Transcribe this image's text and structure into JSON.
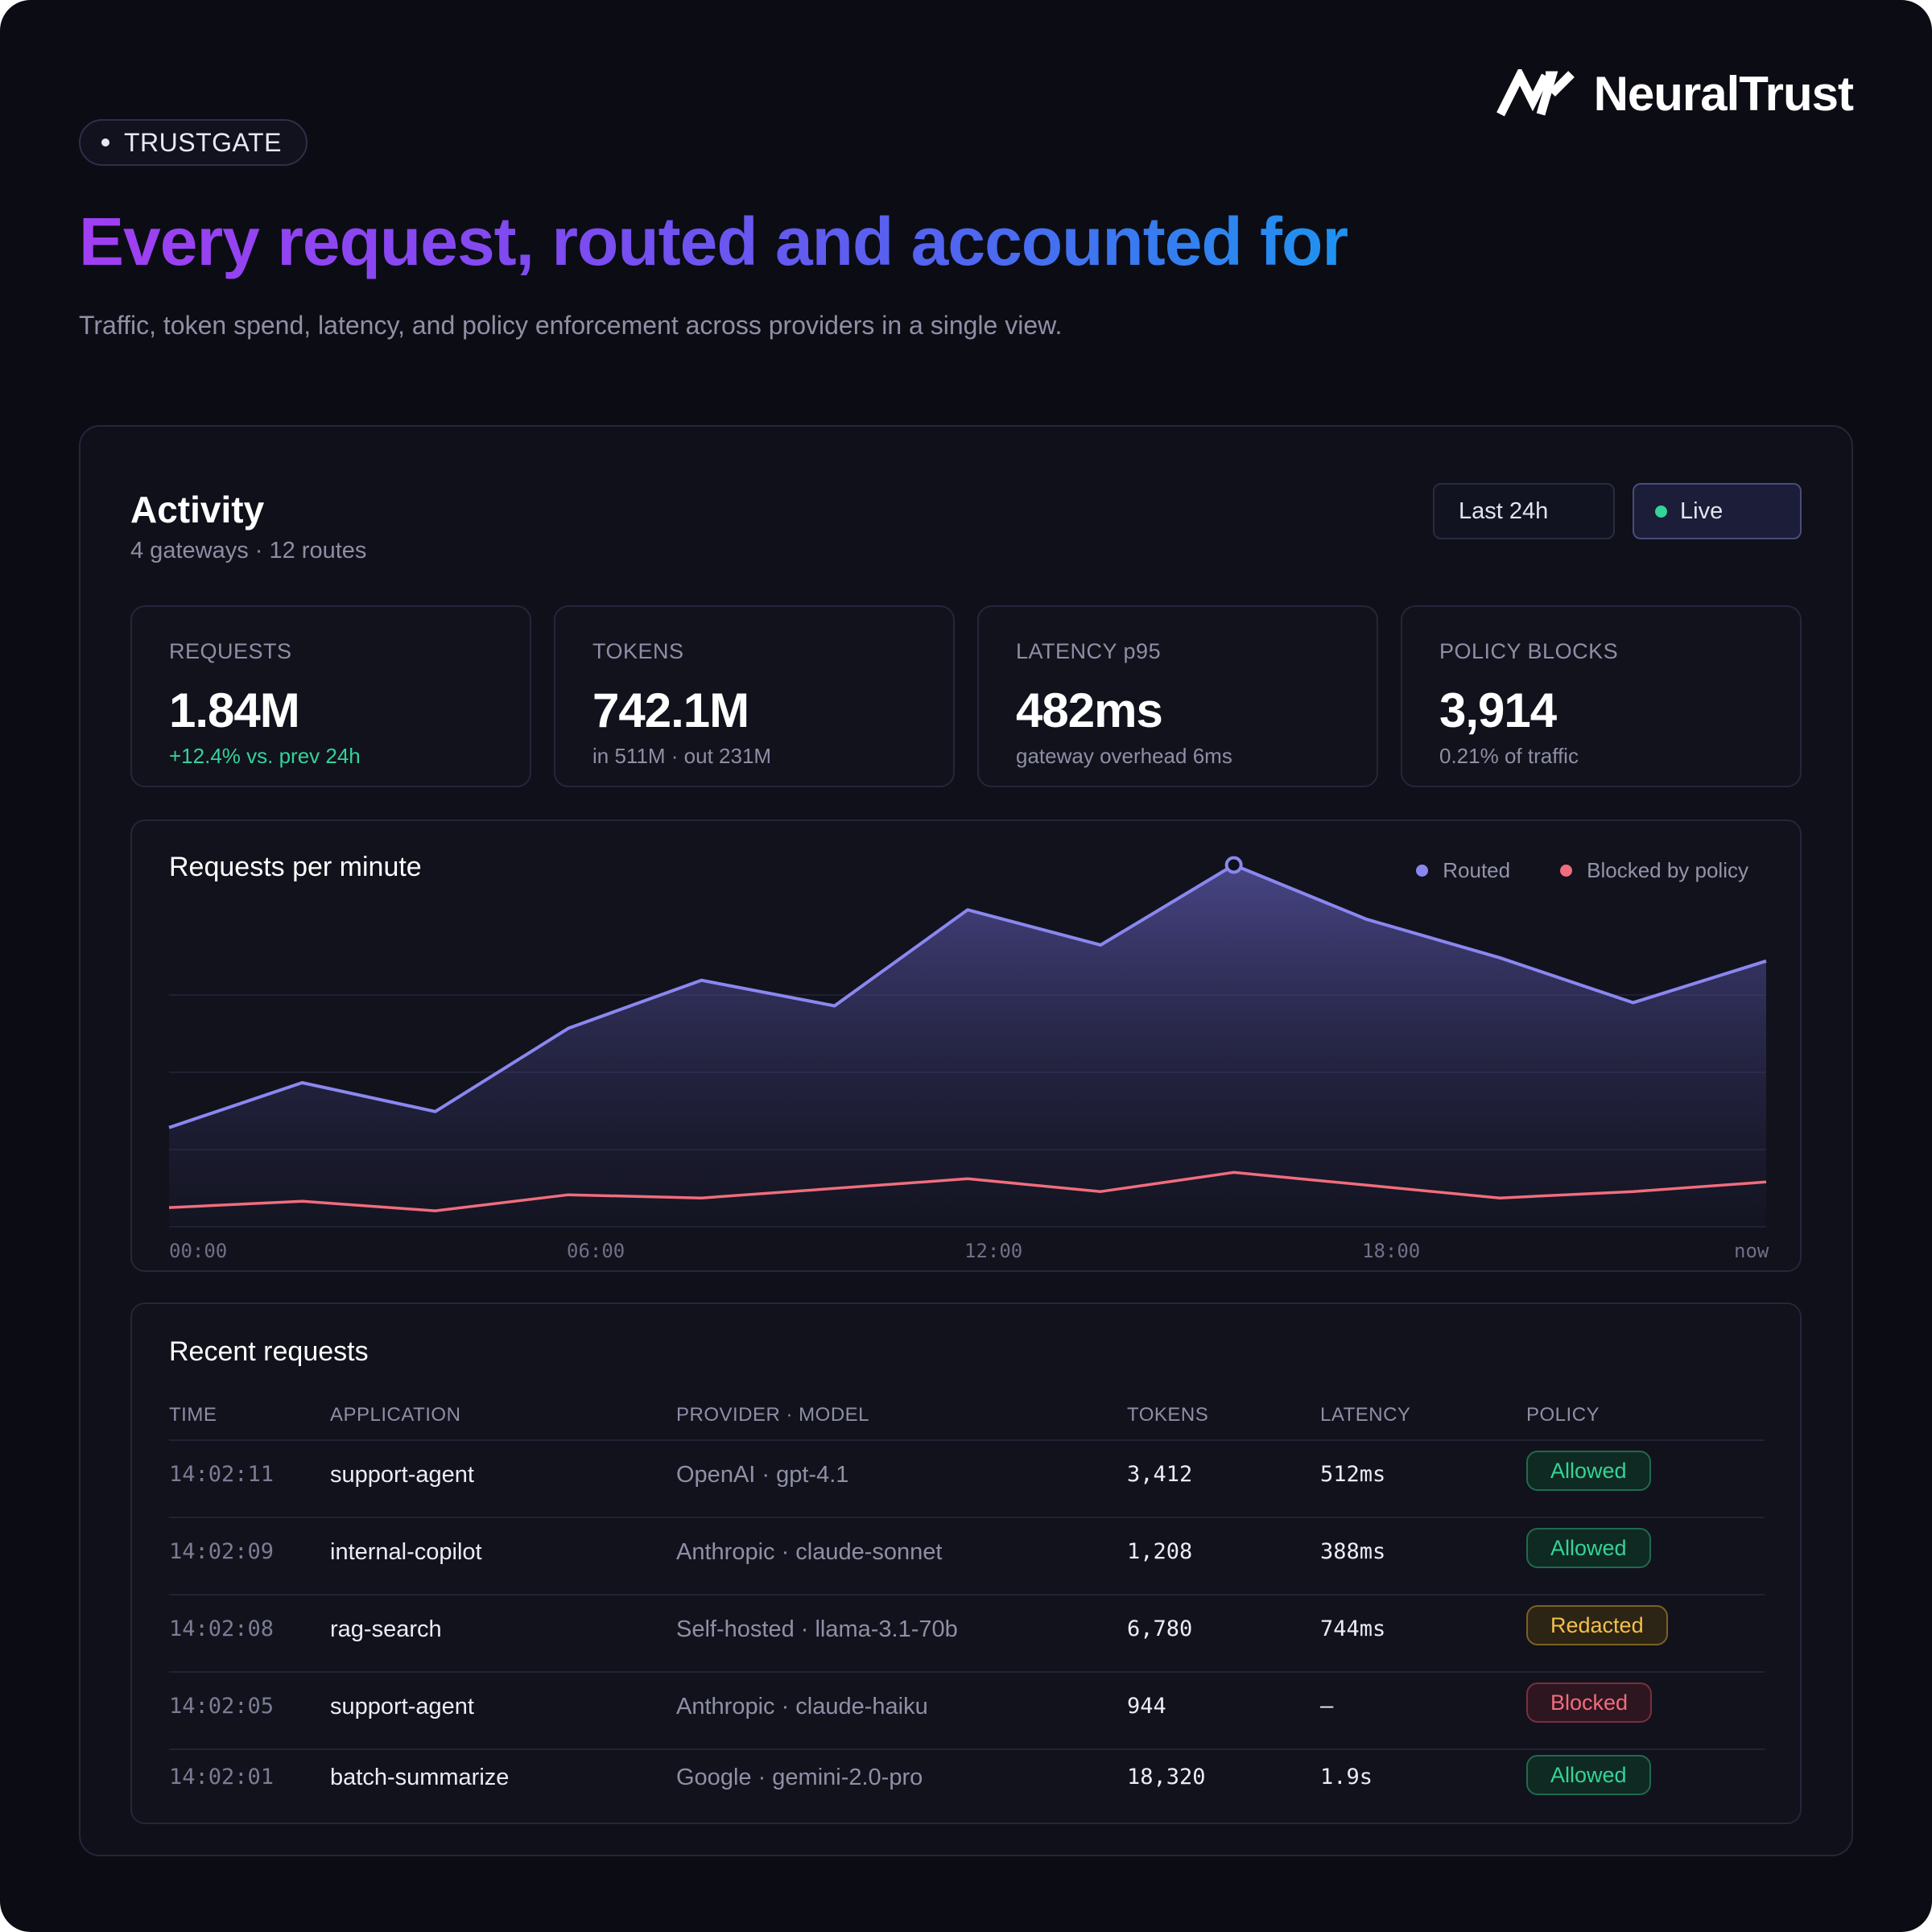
{
  "badge_label": "TRUSTGATE",
  "brand": {
    "name": "NeuralTrust",
    "logo_icon": "neuraltrust-logo-icon"
  },
  "headline": "Every request, routed and accounted for",
  "subheadline": "Traffic, token spend, latency, and policy enforcement across providers in a single view.",
  "activity": {
    "title": "Activity",
    "subtitle": "4 gateways · 12 routes",
    "range_button": "Last 24h",
    "live_button": "Live",
    "colors": {
      "live_dot": "#34d399"
    }
  },
  "stats": [
    {
      "label": "REQUESTS",
      "value": "1.84M",
      "note": "+12.4% vs. prev 24h"
    },
    {
      "label": "TOKENS",
      "value": "742.1M",
      "note": "in 511M · out 231M"
    },
    {
      "label": "LATENCY p95",
      "value": "482ms",
      "note": "gateway overhead 6ms"
    },
    {
      "label": "POLICY BLOCKS",
      "value": "3,914",
      "note": "0.21% of traffic"
    }
  ],
  "chart": {
    "title": "Requests per minute",
    "legend": [
      "Routed",
      "Blocked by policy"
    ],
    "x_labels": [
      "00:00",
      "06:00",
      "12:00",
      "18:00",
      "now"
    ]
  },
  "chart_data": {
    "type": "area",
    "title": "Requests per minute",
    "xlabel": "",
    "ylabel": "",
    "x": [
      "00:00",
      "02:00",
      "04:00",
      "06:00",
      "08:00",
      "10:00",
      "12:00",
      "14:00",
      "16:00",
      "18:00",
      "20:00",
      "22:00",
      "now"
    ],
    "ylim": [
      0,
      1
    ],
    "grid": true,
    "legend_position": "top-right",
    "series": [
      {
        "name": "Routed",
        "color": "#8b87f0",
        "values": [
          0.31,
          0.45,
          0.36,
          0.62,
          0.77,
          0.69,
          0.99,
          0.88,
          1.13,
          0.96,
          0.84,
          0.7,
          0.83
        ]
      },
      {
        "name": "Blocked by policy",
        "color": "#f16d7d",
        "values": [
          0.06,
          0.08,
          0.05,
          0.1,
          0.09,
          0.12,
          0.15,
          0.11,
          0.17,
          0.13,
          0.09,
          0.11,
          0.14
        ]
      }
    ],
    "highlight_point": {
      "series": "Routed",
      "x": "16:00"
    }
  },
  "table": {
    "title": "Recent requests",
    "columns": [
      "TIME",
      "APPLICATION",
      "PROVIDER · MODEL",
      "TOKENS",
      "LATENCY",
      "POLICY"
    ],
    "rows": [
      {
        "time": "14:02:11",
        "app": "support-agent",
        "provider": "OpenAI · gpt-4.1",
        "tokens": "3,412",
        "latency": "512ms",
        "policy": "Allowed",
        "status": "allowed"
      },
      {
        "time": "14:02:09",
        "app": "internal-copilot",
        "provider": "Anthropic · claude-sonnet",
        "tokens": "1,208",
        "latency": "388ms",
        "policy": "Allowed",
        "status": "allowed"
      },
      {
        "time": "14:02:08",
        "app": "rag-search",
        "provider": "Self-hosted · llama-3.1-70b",
        "tokens": "6,780",
        "latency": "744ms",
        "policy": "Redacted",
        "status": "redacted"
      },
      {
        "time": "14:02:05",
        "app": "support-agent",
        "provider": "Anthropic · claude-haiku",
        "tokens": "944",
        "latency": "—",
        "policy": "Blocked",
        "status": "blocked"
      },
      {
        "time": "14:02:01",
        "app": "batch-summarize",
        "provider": "Google · gemini-2.0-pro",
        "tokens": "18,320",
        "latency": "1.9s",
        "policy": "Allowed",
        "status": "allowed"
      }
    ]
  },
  "colors": {
    "background": "#0c0c15",
    "routed": "#8b87f0",
    "blocked": "#f16d7d",
    "allowed": "#34d399",
    "redacted": "#f3c04a"
  }
}
